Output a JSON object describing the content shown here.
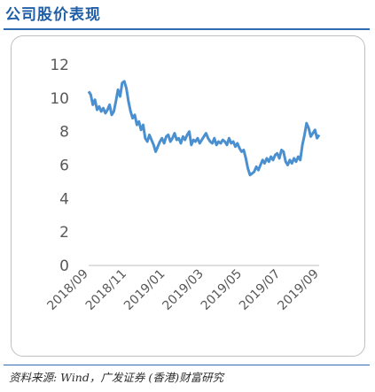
{
  "header": {
    "title": "公司股价表现"
  },
  "footer": {
    "source": "资料来源: Wind，广发证券 (香港)财富研究"
  },
  "colors": {
    "title": "#1f5fa8",
    "rule": "#2e6bb0",
    "line": "#4a90d0",
    "axis_text": "#595959"
  },
  "chart_data": {
    "type": "line",
    "title": "",
    "xlabel": "",
    "ylabel": "",
    "ylim": [
      0,
      12
    ],
    "yticks": [
      0,
      2,
      4,
      6,
      8,
      10,
      12
    ],
    "xticks": [
      "2018/09",
      "2018/11",
      "2019/01",
      "2019/03",
      "2019/05",
      "2019/07",
      "2019/09"
    ],
    "grid": false,
    "legend": "none",
    "series": [
      {
        "values": [
          10.4,
          10.2,
          9.6,
          9.9,
          9.3,
          9.5,
          9.2,
          9.4,
          9.1,
          9.3,
          9.6,
          9.0,
          9.2,
          9.8,
          10.5,
          10.1,
          10.9,
          11.0,
          10.6,
          9.8,
          9.2,
          8.8,
          9.0,
          8.4,
          8.6,
          8.1,
          8.4,
          7.6,
          7.4,
          7.8,
          7.5,
          7.2,
          6.8,
          7.1,
          7.4,
          7.6,
          7.3,
          7.7,
          7.8,
          7.4,
          7.6,
          7.9,
          7.5,
          7.6,
          7.3,
          7.7,
          7.5,
          7.8,
          8.0,
          7.2,
          7.5,
          7.4,
          7.6,
          7.3,
          7.5,
          7.7,
          7.9,
          7.6,
          7.4,
          7.3,
          7.6,
          7.2,
          7.4,
          7.3,
          7.5,
          7.4,
          7.2,
          7.6,
          7.3,
          7.4,
          7.1,
          7.3,
          7.0,
          6.8,
          6.9,
          6.4,
          5.8,
          5.4,
          5.5,
          5.6,
          5.9,
          5.7,
          6.0,
          6.3,
          6.1,
          6.4,
          6.2,
          6.5,
          6.3,
          6.6,
          6.7,
          6.4,
          6.9,
          6.8,
          6.2,
          6.0,
          6.3,
          6.1,
          6.4,
          6.2,
          6.5,
          6.3,
          7.2,
          7.8,
          8.5,
          8.2,
          7.7,
          7.9,
          8.1,
          7.6,
          7.8
        ]
      }
    ]
  }
}
